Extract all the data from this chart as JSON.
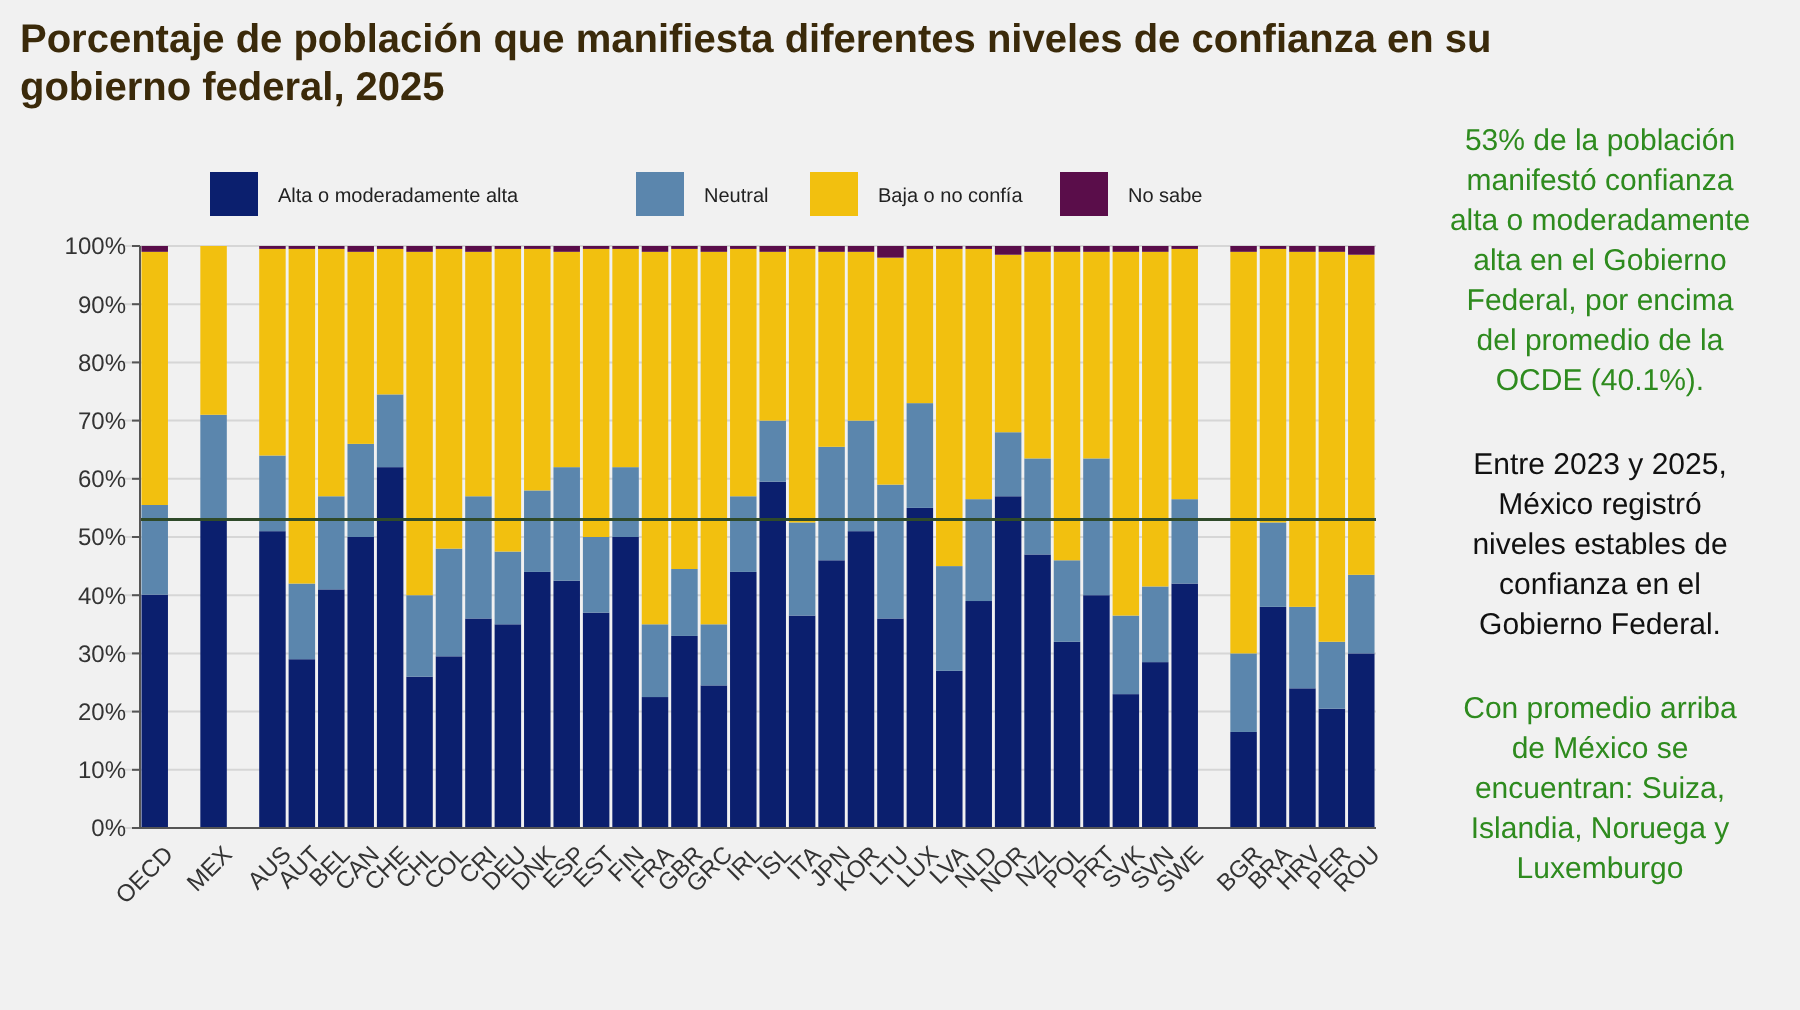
{
  "chart_data": {
    "type": "bar",
    "stacked": true,
    "title": "Porcentaje de población que manifiesta diferentes niveles de confianza en su gobierno federal, 2025",
    "categories": [
      "OECD",
      null,
      "MEX",
      null,
      "AUS",
      "AUT",
      "BEL",
      "CAN",
      "CHE",
      "CHL",
      "COL",
      "CRI",
      "DEU",
      "DNK",
      "ESP",
      "EST",
      "FIN",
      "FRA",
      "GBR",
      "GRC",
      "IRL",
      "ISL",
      "ITA",
      "JPN",
      "KOR",
      "LTU",
      "LUX",
      "LVA",
      "NLD",
      "NOR",
      "NZL",
      "POL",
      "PRT",
      "SVK",
      "SVN",
      "SWE",
      null,
      "BGR",
      "BRA",
      "HRV",
      "PER",
      "ROU"
    ],
    "series": [
      {
        "name": "Alta o moderadamente alta",
        "color": "#0b1f6e",
        "values": [
          40.1,
          null,
          53,
          null,
          51,
          29,
          41,
          50,
          62,
          26,
          29.5,
          36,
          35,
          44,
          42.5,
          37,
          50,
          22.5,
          33,
          24.5,
          44,
          59.5,
          36.5,
          46,
          51,
          36,
          55,
          27,
          39,
          57,
          47,
          32,
          40,
          23,
          28.5,
          42,
          null,
          16.5,
          38,
          24,
          20.5,
          30
        ]
      },
      {
        "name": "Neutral",
        "color": "#5b86ad",
        "values": [
          15.4,
          null,
          18,
          null,
          13,
          13,
          16,
          16,
          12.5,
          14,
          18.5,
          21,
          12.5,
          14,
          19.5,
          13,
          12,
          12.5,
          11.5,
          10.5,
          13,
          10.5,
          16,
          19.5,
          19,
          23,
          18,
          18,
          17.5,
          11,
          16.5,
          14,
          23.5,
          13.5,
          13,
          14.5,
          null,
          13.5,
          14.5,
          14,
          11.5,
          13.5
        ]
      },
      {
        "name": "Baja o no confía",
        "color": "#f2c00f",
        "values": [
          43.5,
          null,
          29,
          null,
          35.5,
          57.5,
          42.5,
          33,
          25,
          59,
          51.5,
          42,
          52,
          41.5,
          37,
          49.5,
          37.5,
          64,
          55,
          64,
          42.5,
          29,
          47,
          33.5,
          29,
          39,
          26.5,
          54.5,
          43,
          30.5,
          35.5,
          53,
          35.5,
          62.5,
          57.5,
          43,
          null,
          69,
          47,
          61,
          67,
          55
        ]
      },
      {
        "name": "No sabe",
        "color": "#5a0d4a",
        "values": [
          1,
          null,
          0,
          null,
          0.5,
          0.5,
          0.5,
          1,
          0.5,
          1,
          0.5,
          1,
          0.5,
          0.5,
          1,
          0.5,
          0.5,
          1,
          0.5,
          1,
          0.5,
          1,
          0.5,
          1,
          1,
          2,
          0.5,
          0.5,
          0.5,
          1.5,
          1,
          1,
          1,
          1,
          1,
          0.5,
          null,
          1,
          0.5,
          1,
          1,
          1.5
        ]
      }
    ],
    "ylim": [
      0,
      100
    ],
    "yticks": [
      {
        "value": 0,
        "label": "0%"
      },
      {
        "value": 10,
        "label": "10%"
      },
      {
        "value": 20,
        "label": "20%"
      },
      {
        "value": 30,
        "label": "30%"
      },
      {
        "value": 40,
        "label": "40%"
      },
      {
        "value": 50,
        "label": "50%"
      },
      {
        "value": 60,
        "label": "60%"
      },
      {
        "value": 70,
        "label": "70%"
      },
      {
        "value": 80,
        "label": "80%"
      },
      {
        "value": 90,
        "label": "90%"
      },
      {
        "value": 100,
        "label": "100%"
      }
    ],
    "grid": "y",
    "legend": "top",
    "ref_lines": [
      {
        "axis": "y",
        "value": 53,
        "color": "#2f4a2a"
      }
    ],
    "annotations": [
      "53% de la población manifestó confianza alta o moderadamente alta en el Gobierno Federal, por encima del promedio de la OCDE (40.1%).",
      "Entre 2023 y 2025, México registró niveles estables de confianza en el Gobierno Federal.",
      "Con promedio arriba de México se encuentran: Suiza, Islandia, Noruega y Luxemburgo"
    ]
  }
}
